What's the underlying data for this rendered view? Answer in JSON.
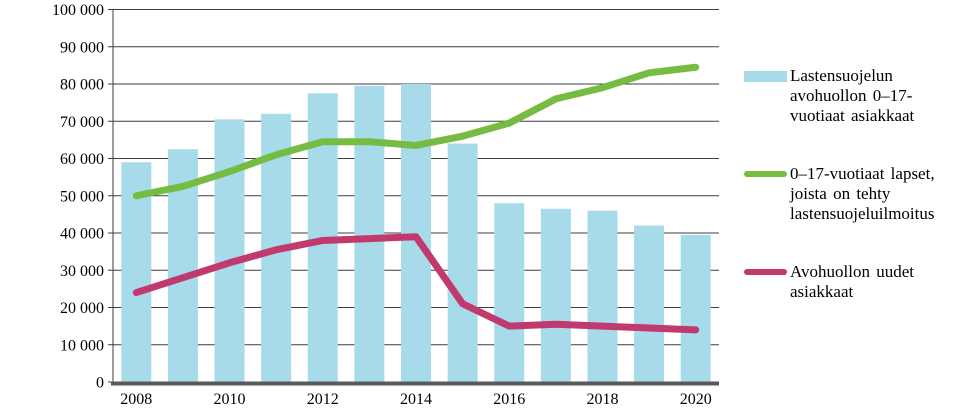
{
  "chart_data": {
    "type": "bar",
    "title": "",
    "xlabel": "",
    "ylabel": "",
    "categories": [
      2008,
      2009,
      2010,
      2011,
      2012,
      2013,
      2014,
      2015,
      2016,
      2017,
      2018,
      2019,
      2020
    ],
    "series": [
      {
        "name": "Lastensuojelun avohuollon 0–17-vuotiaat asiakkaat",
        "type": "bar",
        "color": "#A7DBEA",
        "values": [
          59000,
          62500,
          70500,
          72000,
          77500,
          79500,
          80000,
          64000,
          48000,
          46500,
          46000,
          42000,
          39500
        ]
      },
      {
        "name": "0–17-vuotiaat lapset, joista on tehty lastensuojeluilmoitus",
        "type": "line",
        "color": "#77BC42",
        "values": [
          50000,
          52500,
          56500,
          61000,
          64500,
          64500,
          63500,
          66000,
          69500,
          76000,
          79000,
          83000,
          84500
        ]
      },
      {
        "name": "Avohuollon uudet asiakkaat",
        "type": "line",
        "color": "#C13A6E",
        "values": [
          24000,
          28000,
          32000,
          35500,
          38000,
          38500,
          39000,
          21000,
          15000,
          15500,
          15000,
          14500,
          14000
        ]
      }
    ],
    "ylim": [
      0,
      100000
    ],
    "ytick_step": 10000,
    "ytick_labels": [
      "0",
      "10 000",
      "20 000",
      "30 000",
      "40 000",
      "50 000",
      "60 000",
      "70 000",
      "80 000",
      "90 000",
      "100 000"
    ],
    "xtick_labels": [
      "2008",
      "2010",
      "2012",
      "2014",
      "2016",
      "2018",
      "2020"
    ],
    "grid": "horizontal",
    "legend_position": "right",
    "gridline_color": "#3d3d3d",
    "axis_color": "#595959"
  },
  "legend": {
    "items": [
      {
        "label": "Lastensuojelun\navohuollon 0–17-\nvuotiaat asiakkaat",
        "swatch": "bar"
      },
      {
        "label": "0–17-vuotiaat lapset,\njoista on tehty\nlastensuojeluilmoitus",
        "swatch": "line"
      },
      {
        "label": "Avohuollon uudet\nasiakkaat",
        "swatch": "line"
      }
    ]
  }
}
